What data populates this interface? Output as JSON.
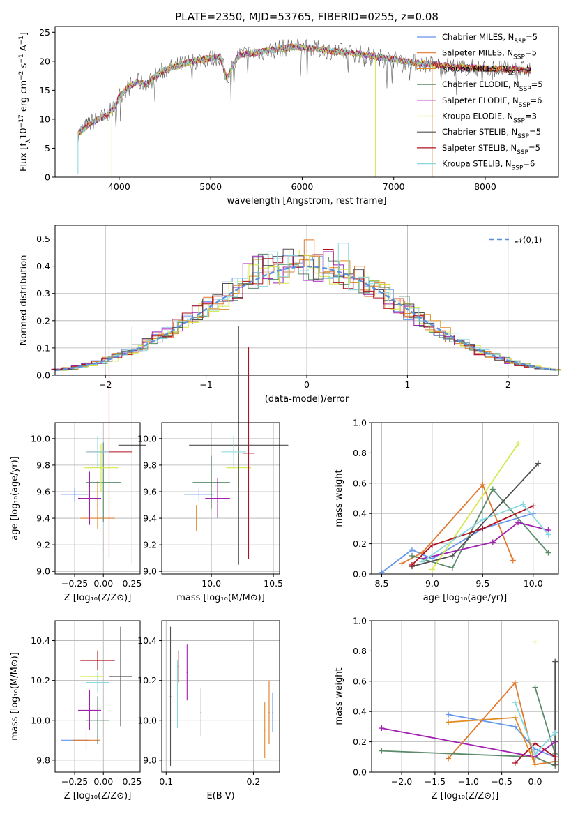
{
  "title": "PLATE=2350, MJD=53765, FIBERID=0255, z=0.08",
  "models": [
    {
      "name": "Chabrier MILES",
      "color": "#6495ed"
    },
    {
      "name": "Salpeter MILES",
      "color": "#e07a2e"
    },
    {
      "name": "Kroupa MILES",
      "color": "#e08a20"
    },
    {
      "name": "Chabrier ELODIE",
      "color": "#5a8a6a"
    },
    {
      "name": "Salpeter ELODIE",
      "color": "#a020b0"
    },
    {
      "name": "Kroupa ELODIE",
      "color": "#d4e84a"
    },
    {
      "name": "Chabrier STELIB",
      "color": "#505050"
    },
    {
      "name": "Salpeter STELIB",
      "color": "#b01020"
    },
    {
      "name": "Kroupa STELIB",
      "color": "#88d8e0"
    }
  ],
  "chart_data": [
    {
      "type": "line",
      "xlabel": "wavelength [Angstrom, rest frame]",
      "ylabel": "Flux [f_λ10^-17 erg cm^-2 s^-1 A^-1]",
      "xlim": [
        3300,
        8800
      ],
      "ylim": [
        0,
        26
      ],
      "xticks": [
        4000,
        5000,
        6000,
        7000,
        8000
      ],
      "yticks": [
        0,
        5,
        10,
        15,
        20,
        25
      ],
      "legend_position": "right",
      "legend": [
        {
          "label": "Chabrier MILES, N_SSP=5"
        },
        {
          "label": "Salpeter MILES, N_SSP=5"
        },
        {
          "label": "Kroupa MILES, N_SSP=5"
        },
        {
          "label": "Chabrier ELODIE, N_SSP=5"
        },
        {
          "label": "Salpeter ELODIE, N_SSP=6"
        },
        {
          "label": "Kroupa ELODIE, N_SSP=3"
        },
        {
          "label": "Chabrier STELIB, N_SSP=5"
        },
        {
          "label": "Salpeter STELIB, N_SSP=5"
        },
        {
          "label": "Kroupa STELIB, N_SSP=6"
        }
      ],
      "spectrum": {
        "wavelength": [
          3550,
          3700,
          3850,
          3950,
          4000,
          4100,
          4200,
          4300,
          4400,
          4500,
          4600,
          4700,
          4800,
          4900,
          5000,
          5100,
          5175,
          5300,
          5500,
          5700,
          5900,
          6100,
          6300,
          6500,
          6600,
          6800,
          7000,
          7200,
          7400,
          7700,
          8000,
          8300,
          8500
        ],
        "flux": [
          7.5,
          9.5,
          10.5,
          12,
          14,
          15.5,
          16.5,
          16,
          17.5,
          18.5,
          19,
          19.5,
          20,
          20.3,
          20.5,
          20.8,
          17,
          21,
          21.5,
          22,
          22.5,
          22.2,
          21.8,
          21.5,
          21.3,
          20.8,
          20.3,
          19.8,
          19.5,
          19,
          18.8,
          18.6,
          18.5
        ]
      },
      "grid": false
    },
    {
      "type": "bar",
      "xlabel": "(data-model)/error",
      "ylabel": "Normed distribution",
      "xlim": [
        -2.5,
        2.5
      ],
      "ylim": [
        0,
        0.55
      ],
      "xticks": [
        -2,
        -1,
        0,
        1,
        2
      ],
      "yticks": [
        0,
        0.1,
        0.2,
        0.3,
        0.4,
        0.5
      ],
      "grid": true,
      "legend_position": "upper right",
      "legend": [
        {
          "label": "𝒩(0,1)"
        }
      ],
      "reference_curve": "gaussian mean 0 sigma 1"
    },
    {
      "type": "scatter",
      "xlabel": "Z [log10(Z/Z⊙)]",
      "ylabel": "age [log10(age/yr)]",
      "xlim": [
        -0.42,
        0.32
      ],
      "ylim": [
        8.98,
        10.12
      ],
      "xticks": [
        -0.25,
        0.0,
        0.25
      ],
      "yticks": [
        9.0,
        9.2,
        9.4,
        9.6,
        9.8,
        10.0
      ],
      "grid": true,
      "points": [
        {
          "model": 0,
          "x": -0.25,
          "y": 9.58,
          "xerr": 0.12,
          "yerr": 0.05
        },
        {
          "model": 1,
          "x": -0.05,
          "y": 9.4,
          "xerr": 0.15,
          "yerr": 0.06
        },
        {
          "model": 2,
          "x": -0.05,
          "y": 9.5,
          "xerr": 0.0,
          "yerr": 0.18
        },
        {
          "model": 3,
          "x": 0.0,
          "y": 9.67,
          "xerr": 0.15,
          "yerr": 0.3
        },
        {
          "model": 4,
          "x": -0.12,
          "y": 9.55,
          "xerr": 0.1,
          "yerr": 0.2
        },
        {
          "model": 5,
          "x": -0.02,
          "y": 9.78,
          "xerr": 0.15,
          "yerr": 0.18
        },
        {
          "model": 6,
          "x": 0.25,
          "y": 9.95,
          "xerr": 0.12,
          "yerr": 0.9
        },
        {
          "model": 7,
          "x": 0.05,
          "y": 9.9,
          "xerr": 0.2,
          "yerr": 0.8
        },
        {
          "model": 8,
          "x": -0.05,
          "y": 9.9,
          "xerr": 0.1,
          "yerr": 0.12
        }
      ]
    },
    {
      "type": "scatter",
      "xlabel": "mass [log10(M/M⊙)]",
      "ylabel": "",
      "xlim": [
        9.6,
        10.55
      ],
      "ylim": [
        8.98,
        10.12
      ],
      "xticks": [
        10.0,
        10.5
      ],
      "yticks": [
        9.0,
        9.2,
        9.4,
        9.6,
        9.8,
        10.0
      ],
      "grid": true,
      "points": [
        {
          "model": 0,
          "x": 9.9,
          "y": 9.58,
          "xerr": 0.12,
          "yerr": 0.05
        },
        {
          "model": 1,
          "x": 9.88,
          "y": 9.4,
          "xerr": 0.0,
          "yerr": 0.1
        },
        {
          "model": 2,
          "x": 9.88,
          "y": 9.4,
          "xerr": 0.0,
          "yerr": 0.08
        },
        {
          "model": 3,
          "x": 10.0,
          "y": 9.67,
          "xerr": 0.15,
          "yerr": 0.2
        },
        {
          "model": 4,
          "x": 10.05,
          "y": 9.55,
          "xerr": 0.1,
          "yerr": 0.15
        },
        {
          "model": 5,
          "x": 10.22,
          "y": 9.78,
          "xerr": 0.1,
          "yerr": 0.15
        },
        {
          "model": 6,
          "x": 10.22,
          "y": 9.95,
          "xerr": 0.4,
          "yerr": 0.9
        },
        {
          "model": 7,
          "x": 10.3,
          "y": 9.89,
          "xerr": 0.05,
          "yerr": 0.8
        },
        {
          "model": 8,
          "x": 10.18,
          "y": 9.9,
          "xerr": 0.1,
          "yerr": 0.12
        }
      ]
    },
    {
      "type": "line",
      "xlabel": "age [log10(age/yr)]",
      "ylabel": "mass weight",
      "xlim": [
        8.4,
        10.25
      ],
      "ylim": [
        0,
        1.0
      ],
      "xticks": [
        8.5,
        9.0,
        9.5,
        10.0
      ],
      "yticks": [
        0.0,
        0.2,
        0.4,
        0.6,
        0.8,
        1.0
      ],
      "grid": true,
      "series": [
        {
          "model": 0,
          "x": [
            8.5,
            8.8,
            9.0,
            9.5,
            10.0
          ],
          "y": [
            0.01,
            0.16,
            0.1,
            0.3,
            0.4
          ]
        },
        {
          "model": 1,
          "x": [
            8.7,
            8.9,
            9.5,
            9.8
          ],
          "y": [
            0.07,
            0.14,
            0.59,
            0.09
          ]
        },
        {
          "model": 3,
          "x": [
            8.8,
            9.2,
            9.6,
            10.15
          ],
          "y": [
            0.12,
            0.04,
            0.56,
            0.14
          ]
        },
        {
          "model": 4,
          "x": [
            8.9,
            9.6,
            9.85,
            10.15
          ],
          "y": [
            0.1,
            0.21,
            0.34,
            0.29
          ]
        },
        {
          "model": 5,
          "x": [
            9.0,
            9.85
          ],
          "y": [
            0.03,
            0.86
          ]
        },
        {
          "model": 6,
          "x": [
            8.8,
            9.2,
            10.05
          ],
          "y": [
            0.05,
            0.12,
            0.73
          ]
        },
        {
          "model": 7,
          "x": [
            8.8,
            9.0,
            9.5,
            10.0
          ],
          "y": [
            0.06,
            0.19,
            0.3,
            0.45
          ]
        },
        {
          "model": 8,
          "x": [
            8.9,
            9.5,
            9.9,
            10.15
          ],
          "y": [
            0.08,
            0.36,
            0.46,
            0.26
          ]
        }
      ]
    },
    {
      "type": "scatter",
      "xlabel": "Z [log10(Z/Z⊙)]",
      "ylabel": "mass [log10(M/M⊙)]",
      "xlim": [
        -0.42,
        0.32
      ],
      "ylim": [
        9.74,
        10.5
      ],
      "xticks": [
        -0.25,
        0.0,
        0.25
      ],
      "yticks": [
        9.8,
        10.0,
        10.2,
        10.4
      ],
      "grid": true,
      "points": [
        {
          "model": 0,
          "x": -0.25,
          "y": 9.9,
          "xerr": 0.12,
          "yerr": 0.0
        },
        {
          "model": 1,
          "x": -0.15,
          "y": 9.9,
          "xerr": 0.12,
          "yerr": 0.05
        },
        {
          "model": 3,
          "x": -0.05,
          "y": 10.0,
          "xerr": 0.1,
          "yerr": 0.12
        },
        {
          "model": 4,
          "x": -0.12,
          "y": 10.05,
          "xerr": 0.1,
          "yerr": 0.1
        },
        {
          "model": 5,
          "x": -0.1,
          "y": 10.22,
          "xerr": 0.1,
          "yerr": 0.0
        },
        {
          "model": 6,
          "x": 0.15,
          "y": 10.22,
          "xerr": 0.1,
          "yerr": 0.25
        },
        {
          "model": 7,
          "x": -0.05,
          "y": 10.3,
          "xerr": 0.15,
          "yerr": 0.05
        },
        {
          "model": 8,
          "x": -0.05,
          "y": 10.19,
          "xerr": 0.1,
          "yerr": 0.05
        }
      ]
    },
    {
      "type": "scatter",
      "xlabel": "E(B-V)",
      "ylabel": "",
      "xlim": [
        0.095,
        0.23
      ],
      "ylim": [
        9.74,
        10.5
      ],
      "xticks": [
        0.1,
        0.2
      ],
      "yticks": [
        9.8,
        10.0,
        10.2,
        10.4
      ],
      "grid": true,
      "points": [
        {
          "model": 6,
          "x": 0.105,
          "y": 10.12,
          "yerr": 0.35
        },
        {
          "model": 8,
          "x": 0.113,
          "y": 10.13,
          "yerr": 0.17
        },
        {
          "model": 7,
          "x": 0.114,
          "y": 10.27,
          "yerr": 0.08
        },
        {
          "model": 4,
          "x": 0.124,
          "y": 10.24,
          "yerr": 0.14
        },
        {
          "model": 3,
          "x": 0.14,
          "y": 10.04,
          "yerr": 0.12
        },
        {
          "model": 2,
          "x": 0.213,
          "y": 9.95,
          "yerr": 0.14
        },
        {
          "model": 1,
          "x": 0.218,
          "y": 10.04,
          "yerr": 0.16
        },
        {
          "model": 0,
          "x": 0.222,
          "y": 10.04,
          "yerr": 0.1
        }
      ]
    },
    {
      "type": "line",
      "xlabel": "Z [log10(Z/Z⊙)]",
      "ylabel": "mass weight",
      "xlim": [
        -2.45,
        0.35
      ],
      "ylim": [
        0,
        1.0
      ],
      "xticks": [
        -2.0,
        -1.5,
        -1.0,
        -0.5,
        0.0
      ],
      "yticks": [
        0.0,
        0.2,
        0.4,
        0.6,
        0.8,
        1.0
      ],
      "grid": true,
      "series": [
        {
          "model": 0,
          "x": [
            -1.3,
            -0.3,
            0.0,
            0.3
          ],
          "y": [
            0.38,
            0.3,
            0.15,
            0.1
          ]
        },
        {
          "model": 1,
          "x": [
            -1.3,
            -0.3,
            0.0,
            0.3
          ],
          "y": [
            0.09,
            0.59,
            0.05,
            0.07
          ]
        },
        {
          "model": 3,
          "x": [
            -2.3,
            0.0,
            0.3
          ],
          "y": [
            0.14,
            0.1,
            0.04
          ]
        },
        {
          "model": 3,
          "x": [
            0.0,
            0.3
          ],
          "y": [
            0.56,
            0.12
          ]
        },
        {
          "model": 4,
          "x": [
            -2.3,
            0.0,
            0.3
          ],
          "y": [
            0.29,
            0.1,
            0.2
          ]
        },
        {
          "model": 5,
          "x": [
            0.0
          ],
          "y": [
            0.86
          ]
        },
        {
          "model": 6,
          "x": [
            0.3,
            0.3
          ],
          "y": [
            0.73,
            0.05
          ]
        },
        {
          "model": 7,
          "x": [
            -0.3,
            0.0,
            0.3
          ],
          "y": [
            0.06,
            0.19,
            0.1
          ]
        },
        {
          "model": 8,
          "x": [
            -0.3,
            0.0,
            0.3
          ],
          "y": [
            0.46,
            0.12,
            0.26
          ]
        },
        {
          "model": 2,
          "x": [
            -1.3,
            -0.3,
            0.0
          ],
          "y": [
            0.33,
            0.36,
            0.05
          ]
        }
      ]
    }
  ]
}
